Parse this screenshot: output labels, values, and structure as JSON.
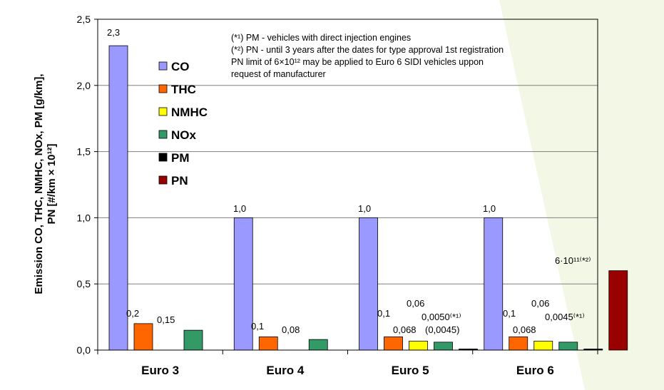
{
  "chart_data": {
    "type": "bar",
    "categories": [
      "Euro 3",
      "Euro 4",
      "Euro 5",
      "Euro 6"
    ],
    "ylabel_line1": "Emission CO, THC, NMHC, NOx, PM [g/km],",
    "ylabel_line2": "PN [#/km × 10¹²]",
    "ylim": [
      0,
      2.5
    ],
    "yticks": [
      "0,0",
      "0,5",
      "1,0",
      "1,5",
      "2,0",
      "2,5"
    ],
    "ytick_values": [
      0,
      0.5,
      1.0,
      1.5,
      2.0,
      2.5
    ],
    "grid": true,
    "legend_position": "top-left",
    "series": [
      {
        "name": "CO",
        "color": "#9999ff",
        "values": [
          2.3,
          1.0,
          1.0,
          1.0
        ],
        "labels": [
          "2,3",
          "1,0",
          "1,0",
          "1,0"
        ]
      },
      {
        "name": "THC",
        "color": "#ff6600",
        "values": [
          0.2,
          0.1,
          0.1,
          0.1
        ],
        "labels": [
          "0,2",
          "0,1",
          "0,1",
          "0,1"
        ]
      },
      {
        "name": "NMHC",
        "color": "#ffff00",
        "values": [
          null,
          null,
          0.068,
          0.068
        ],
        "labels": [
          "",
          "",
          "0,068",
          "0,068"
        ]
      },
      {
        "name": "NOx",
        "color": "#339966",
        "values": [
          0.15,
          0.08,
          0.06,
          0.06
        ],
        "labels": [
          "0,15",
          "0,08",
          "0,06",
          "0,06"
        ]
      },
      {
        "name": "PM",
        "color": "#000000",
        "values": [
          null,
          null,
          0.005,
          0.0045
        ],
        "labels": [
          "",
          "",
          "0,0050⁽*¹⁾",
          "0,0045⁽*¹⁾"
        ]
      },
      {
        "name": "PN",
        "color": "#990000",
        "values": [
          null,
          null,
          null,
          0.6
        ],
        "labels": [
          "",
          "",
          "",
          "6·10¹¹⁽*²⁾"
        ]
      }
    ],
    "extra_labels": [
      "(0,0045)"
    ],
    "notes": [
      "(*¹) PM - vehicles with direct injection engines",
      "(*²) PN - until 3 years after the dates for type approval 1st registration",
      "PN limit of 6×10¹² may be applied to Euro 6 SIDI vehicles uppon",
      "request of manufacturer"
    ]
  }
}
